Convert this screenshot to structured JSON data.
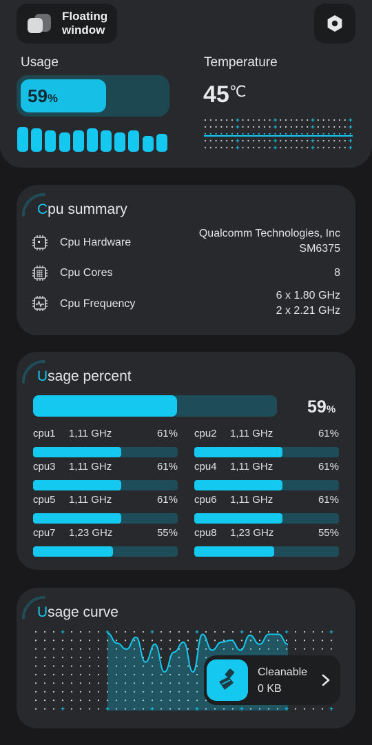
{
  "header": {
    "floating_window_label": "Floating window",
    "floating_icon": "floating-window-icon",
    "settings_icon": "hexagon-settings-icon"
  },
  "usage": {
    "label": "Usage",
    "value": "59",
    "unit": "%",
    "fraction": 0.59,
    "history_bars": [
      1.0,
      0.94,
      0.86,
      0.78,
      0.86,
      0.94,
      0.86,
      0.78,
      0.86,
      0.63,
      0.72
    ]
  },
  "temperature": {
    "label": "Temperature",
    "value": "45",
    "unit": "℃"
  },
  "cpu_summary": {
    "title_first": "C",
    "title_rest": "pu summary",
    "rows": [
      {
        "icon": "chip-icon",
        "label": "Cpu Hardware",
        "value_line1": "Qualcomm Technologies, Inc",
        "value_line2": "SM6375"
      },
      {
        "icon": "cpu-cores-icon",
        "label": "Cpu Cores",
        "value_line1": "8",
        "value_line2": ""
      },
      {
        "icon": "cpu-frequency-icon",
        "label": "Cpu Frequency",
        "value_line1": "6 x 1.80 GHz",
        "value_line2": "2 x 2.21 GHz"
      }
    ]
  },
  "usage_percent": {
    "title_first": "U",
    "title_rest": "sage percent",
    "total_value": "59",
    "total_unit": "%",
    "total_fraction": 0.59,
    "cores": [
      {
        "name": "cpu1",
        "freq": "1,11 GHz",
        "pct": "61%",
        "fraction": 0.61
      },
      {
        "name": "cpu2",
        "freq": "1,11 GHz",
        "pct": "61%",
        "fraction": 0.61
      },
      {
        "name": "cpu3",
        "freq": "1,11 GHz",
        "pct": "61%",
        "fraction": 0.61
      },
      {
        "name": "cpu4",
        "freq": "1,11 GHz",
        "pct": "61%",
        "fraction": 0.61
      },
      {
        "name": "cpu5",
        "freq": "1,11 GHz",
        "pct": "61%",
        "fraction": 0.61
      },
      {
        "name": "cpu6",
        "freq": "1,11 GHz",
        "pct": "61%",
        "fraction": 0.61
      },
      {
        "name": "cpu7",
        "freq": "1,23 GHz",
        "pct": "55%",
        "fraction": 0.55
      },
      {
        "name": "cpu8",
        "freq": "1,23 GHz",
        "pct": "55%",
        "fraction": 0.55
      }
    ]
  },
  "usage_curve": {
    "title_first": "U",
    "title_rest": "sage curve",
    "levels": [
      1.0,
      0.8,
      0.68,
      0.92,
      0.42,
      0.78,
      0.22,
      0.62,
      0.82,
      0.22,
      0.98,
      0.66,
      0.82,
      0.86,
      0.66,
      0.96,
      0.78,
      0.98,
      0.98,
      0.78
    ]
  },
  "cleanable": {
    "title": "Cleanable",
    "size": "0 KB",
    "icon": "broom-icon",
    "chevron_icon": "chevron-right-icon"
  },
  "colors": {
    "accent": "#14c8f0",
    "track": "#1e4c58",
    "card": "#28292c",
    "background": "#19191b"
  }
}
